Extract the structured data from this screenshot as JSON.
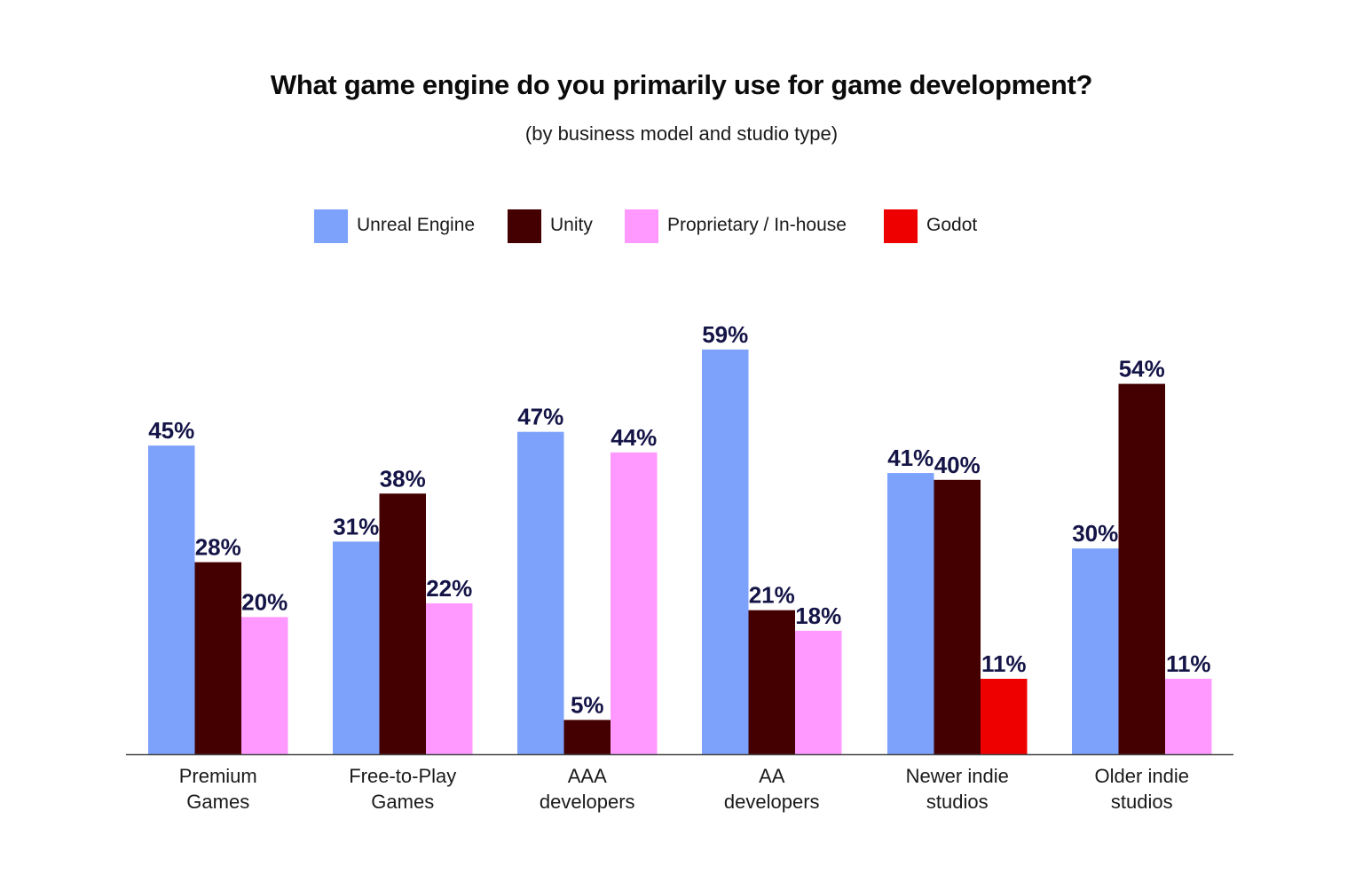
{
  "chart_data": {
    "type": "bar",
    "title": "What game engine do you primarily use for game development?",
    "subtitle": "(by business model and studio type)",
    "categories": [
      [
        "Premium",
        "Games"
      ],
      [
        "Free-to-Play",
        "Games"
      ],
      [
        "AAA",
        "developers"
      ],
      [
        "AA",
        "developers"
      ],
      [
        "Newer indie",
        "studios"
      ],
      [
        "Older indie",
        "studios"
      ]
    ],
    "series": [
      {
        "name": "Unreal Engine",
        "color": "#7da2fc",
        "values": [
          45,
          31,
          47,
          59,
          41,
          30
        ]
      },
      {
        "name": "Unity",
        "color": "#440000",
        "values": [
          28,
          38,
          5,
          21,
          40,
          54
        ]
      },
      {
        "name": "Proprietary / In-house",
        "color": "#ff99ff",
        "values": [
          20,
          22,
          44,
          18,
          null,
          11
        ]
      },
      {
        "name": "Godot",
        "color": "#ee0000",
        "values": [
          null,
          null,
          null,
          null,
          11,
          null
        ]
      }
    ],
    "value_labels": [
      [
        "45%",
        "28%",
        "20%",
        null
      ],
      [
        "31%",
        "38%",
        "22%",
        null
      ],
      [
        "47%",
        "5%",
        "44%",
        null
      ],
      [
        "59%",
        "21%",
        "18%",
        null
      ],
      [
        "41%",
        "40%",
        null,
        "11%"
      ],
      [
        "30%",
        "54%",
        "11%",
        null
      ]
    ],
    "ylim": [
      0,
      59
    ],
    "grid": false,
    "legend_position": "top"
  }
}
